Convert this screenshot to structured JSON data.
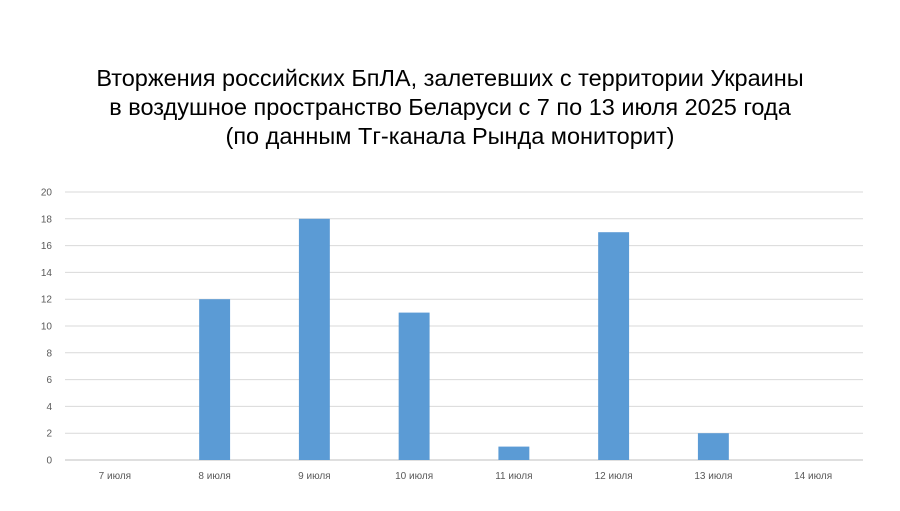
{
  "chart_data": {
    "type": "bar",
    "title_lines": [
      "Вторжения российских БпЛА, залетевших с территории Украины",
      "в воздушное пространство Беларуси с 7 по 13 июля 2025 года",
      "(по данным Тг-канала Рында мониторит)"
    ],
    "categories": [
      "7 июля",
      "8 июля",
      "9 июля",
      "10 июля",
      "11 июля",
      "12 июля",
      "13 июля",
      "14 июля"
    ],
    "values": [
      0,
      12,
      18,
      11,
      1,
      17,
      2,
      0
    ],
    "ylim": [
      0,
      20
    ],
    "yticks": [
      0,
      2,
      4,
      6,
      8,
      10,
      12,
      14,
      16,
      18,
      20
    ],
    "xlabel": "",
    "ylabel": "",
    "grid": true,
    "legend": "none",
    "bar_color": "#5b9bd5",
    "grid_color": "#d9d9d9"
  }
}
